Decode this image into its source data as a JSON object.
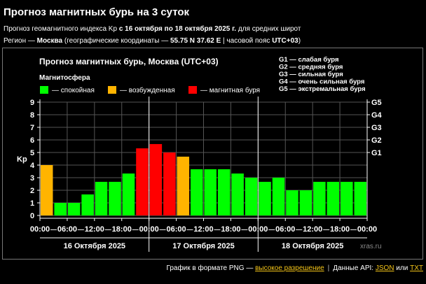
{
  "header": {
    "title": "Прогноз магнитных бурь на 3 суток",
    "line1_prefix": "Прогноз геомагнитного индекса Kp ",
    "line1_range": "с 16 октября по 18 октября 2025 г.",
    "line1_suffix": " для средних широт",
    "line2_prefix": "Регион — ",
    "line2_city": "Москва",
    "line2_mid": " (географические координаты — ",
    "line2_coords": "55.75 N 37.62 E",
    "line2_sep": " | часовой пояс ",
    "line2_tz": "UTC+03",
    "line2_end": ")"
  },
  "chart_data": {
    "type": "bar",
    "title": "Прогноз магнитных бурь, Москва (UTC+03)",
    "ylabel": "Kp",
    "ylim": [
      0,
      9
    ],
    "legend_title": "Магнитосфера",
    "legend": [
      {
        "label": "— спокойная",
        "color": "#00ff00"
      },
      {
        "label": "— возбужденная",
        "color": "#ffb400"
      },
      {
        "label": "— магнитная буря",
        "color": "#ff0000"
      }
    ],
    "storm_levels": [
      {
        "label": "G1 — слабая буря",
        "tick": "G1",
        "kp": 5
      },
      {
        "label": "G2 — средняя буря",
        "tick": "G2",
        "kp": 6
      },
      {
        "label": "G3 — сильная буря",
        "tick": "G3",
        "kp": 7
      },
      {
        "label": "G4 — очень сильная буря",
        "tick": "G4",
        "kp": 8
      },
      {
        "label": "G5 — экстремальная буря",
        "tick": "G5",
        "kp": 9
      }
    ],
    "yticks": [
      "0",
      "1",
      "2",
      "3",
      "4",
      "5",
      "6",
      "7",
      "8",
      "9"
    ],
    "x_ticks": [
      "00:00",
      "06:00",
      "12:00",
      "18:00",
      "00:00",
      "06:00",
      "12:00",
      "18:00",
      "00:00",
      "06:00",
      "12:00",
      "18:00",
      "00:00"
    ],
    "days": [
      "16 Октября 2025",
      "17 Октября 2025",
      "18 Октября 2025"
    ],
    "values": [
      4.0,
      1.0,
      1.0,
      1.67,
      2.67,
      2.67,
      3.33,
      5.33,
      5.67,
      5.0,
      4.67,
      3.67,
      3.67,
      3.67,
      3.33,
      3.0,
      2.67,
      3.0,
      2.0,
      2.0,
      2.67,
      2.67,
      2.67,
      2.67
    ],
    "levels": [
      "moderate",
      "quiet",
      "quiet",
      "quiet",
      "quiet",
      "quiet",
      "quiet",
      "storm",
      "storm",
      "storm",
      "moderate",
      "quiet",
      "quiet",
      "quiet",
      "quiet",
      "quiet",
      "quiet",
      "quiet",
      "quiet",
      "quiet",
      "quiet",
      "quiet",
      "quiet",
      "quiet"
    ],
    "colors": {
      "quiet": "#00ff00",
      "moderate": "#ffb400",
      "storm": "#ff0000",
      "grid": "#555555",
      "axis": "#ffffff"
    },
    "watermark": "xras.ru"
  },
  "footer": {
    "text1": "График в формате PNG — ",
    "link1": "высокое разрешение",
    "sep": "|",
    "text2": "Данные API: ",
    "link2": "JSON",
    "text3": " или ",
    "link3": "TXT"
  }
}
